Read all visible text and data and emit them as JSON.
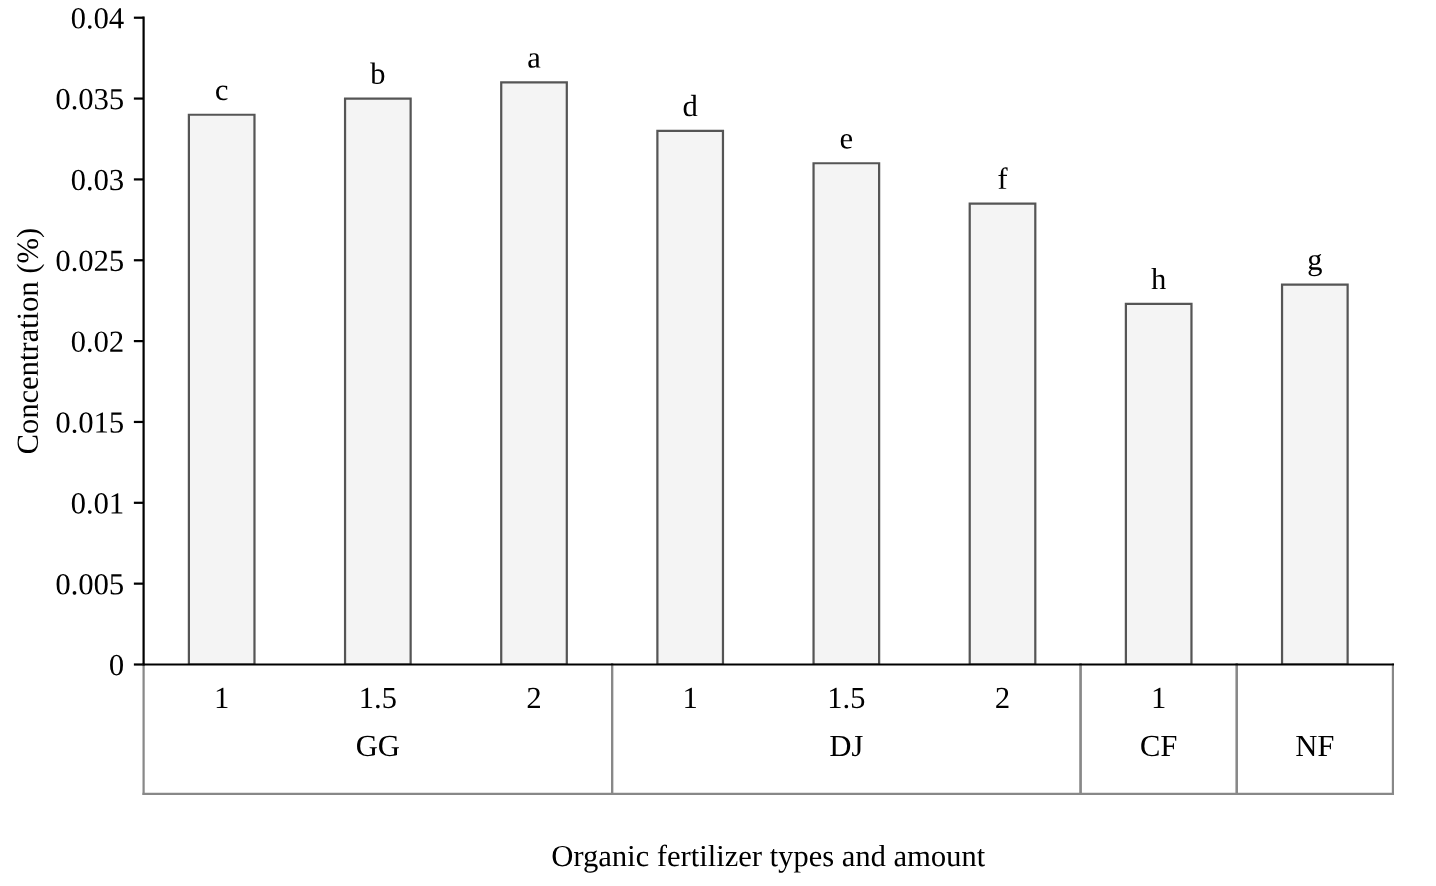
{
  "chart_data": {
    "type": "bar",
    "xlabel": "Organic fertilizer types and amount",
    "ylabel": "Concentration (%)",
    "categories": [
      "1",
      "1.5",
      "2",
      "1",
      "1.5",
      "2",
      "1",
      null
    ],
    "values": [
      0.034,
      0.035,
      0.036,
      0.033,
      0.031,
      0.0285,
      0.0223,
      0.0235
    ],
    "value_labels": [
      "c",
      "b",
      "a",
      "d",
      "e",
      "f",
      "h",
      "g"
    ],
    "color": "#f4f4f4",
    "ylim": [
      0,
      0.04
    ],
    "yticks": [
      0,
      0.005,
      0.01,
      0.015,
      0.02,
      0.025,
      0.03,
      0.035,
      0.04
    ],
    "annotations": [
      "GG",
      "DJ",
      "CF",
      "NF"
    ],
    "grid": false
  }
}
